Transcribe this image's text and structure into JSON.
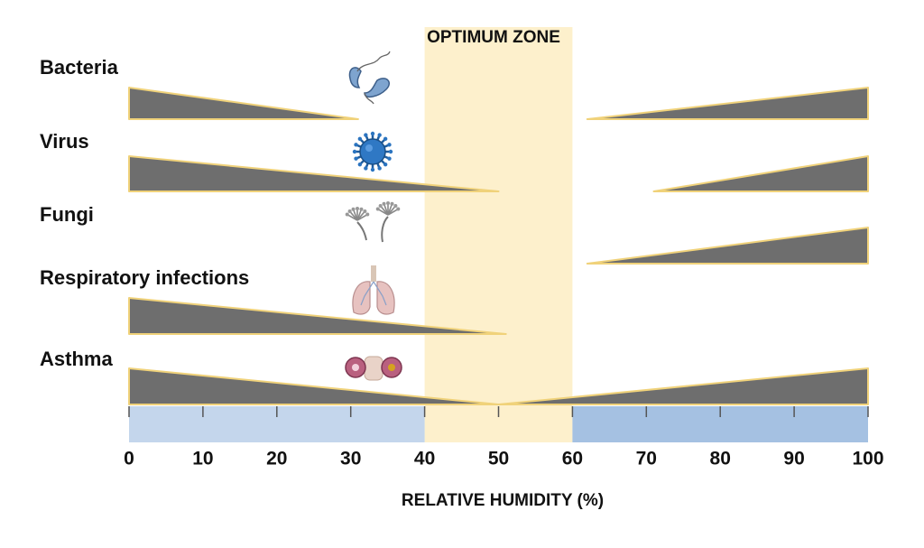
{
  "chart_data": {
    "type": "area",
    "title": "",
    "xlabel": "RELATIVE HUMIDITY (%)",
    "xlim": [
      0,
      100
    ],
    "ticks": [
      0,
      10,
      20,
      30,
      40,
      50,
      60,
      70,
      80,
      90,
      100
    ],
    "tick_labels": [
      "0",
      "10",
      "20",
      "30",
      "40",
      "50",
      "60",
      "70",
      "80",
      "90",
      "100"
    ],
    "optimum_zone": {
      "label": "OPTIMUM ZONE",
      "range": [
        40,
        60
      ]
    },
    "series": [
      {
        "name": "Bacteria",
        "icon": "bacteria-icon",
        "left": {
          "x": [
            0,
            31
          ],
          "intensity": [
            1,
            0
          ]
        },
        "right": {
          "x": [
            62,
            100
          ],
          "intensity": [
            0,
            1
          ]
        }
      },
      {
        "name": "Virus",
        "icon": "virus-icon",
        "left": {
          "x": [
            0,
            50
          ],
          "intensity": [
            1,
            0
          ]
        },
        "right": {
          "x": [
            71,
            100
          ],
          "intensity": [
            0,
            1
          ]
        }
      },
      {
        "name": "Fungi",
        "icon": "fungi-icon",
        "left": null,
        "right": {
          "x": [
            62,
            100
          ],
          "intensity": [
            0,
            1
          ]
        }
      },
      {
        "name": "Respiratory infections",
        "icon": "lungs-icon",
        "left": {
          "x": [
            0,
            51
          ],
          "intensity": [
            1,
            0
          ]
        },
        "right": null
      },
      {
        "name": "Asthma",
        "icon": "asthma-lungs-icon",
        "left": {
          "x": [
            0,
            50
          ],
          "intensity": [
            1,
            0
          ]
        },
        "right": {
          "x": [
            50,
            100
          ],
          "intensity": [
            0,
            1
          ]
        }
      }
    ],
    "colors": {
      "wedge_fill": "#6e6e6e",
      "wedge_stroke": "#f0d27a",
      "optimum_fill": "#fdf0cc",
      "axis_left_band": "#c4d6ec",
      "axis_right_band": "#a5c1e2",
      "tick_color": "#555555"
    },
    "grid": false,
    "legend": "none"
  }
}
